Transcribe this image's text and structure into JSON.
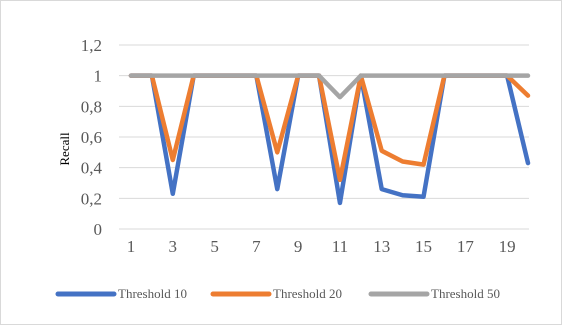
{
  "chart_data": {
    "type": "line",
    "title": "",
    "xlabel": "",
    "ylabel": "Recall",
    "x": [
      1,
      2,
      3,
      4,
      5,
      6,
      7,
      8,
      9,
      10,
      11,
      12,
      13,
      14,
      15,
      16,
      17,
      18,
      19,
      20
    ],
    "x_tick_labels": [
      "1",
      "3",
      "5",
      "7",
      "9",
      "11",
      "13",
      "15",
      "17",
      "19"
    ],
    "y_tick_labels": [
      "0",
      "0,2",
      "0,4",
      "0,6",
      "0,8",
      "1",
      "1,2"
    ],
    "ylim": [
      0,
      1.2
    ],
    "y_ticks": [
      0,
      0.2,
      0.4,
      0.6,
      0.8,
      1.0,
      1.2
    ],
    "grid": "horizontal",
    "legend_position": "bottom",
    "series": [
      {
        "name": "Threshold 10",
        "color": "#4472C4",
        "values": [
          1,
          1,
          0.23,
          1,
          1,
          1,
          1,
          0.26,
          1,
          1,
          0.17,
          1,
          0.26,
          0.22,
          0.21,
          1,
          1,
          1,
          1,
          0.43
        ]
      },
      {
        "name": "Threshold 20",
        "color": "#ED7D31",
        "values": [
          1,
          1,
          0.45,
          1,
          1,
          1,
          1,
          0.5,
          1,
          1,
          0.32,
          1,
          0.51,
          0.44,
          0.42,
          1,
          1,
          1,
          1,
          0.87
        ]
      },
      {
        "name": "Threshold 50",
        "color": "#A5A5A5",
        "values": [
          1,
          1,
          1,
          1,
          1,
          1,
          1,
          1,
          1,
          1,
          0.86,
          1,
          1,
          1,
          1,
          1,
          1,
          1,
          1,
          1
        ]
      }
    ]
  }
}
